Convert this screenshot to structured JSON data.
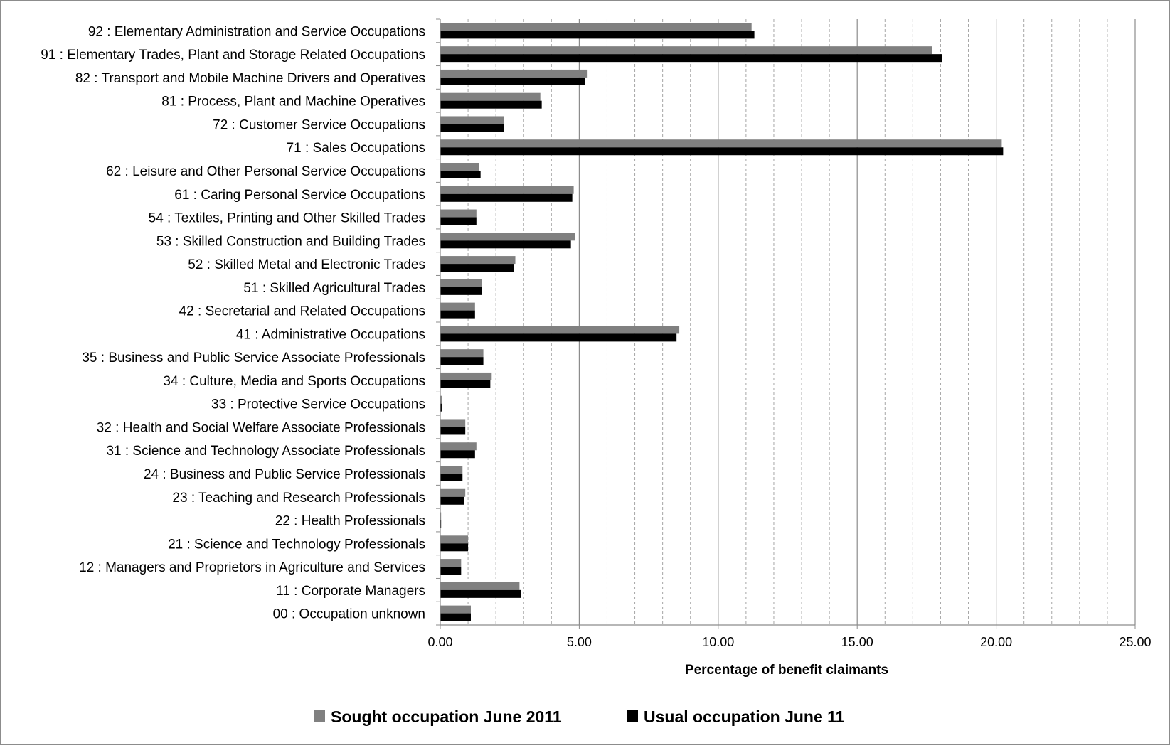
{
  "chart_data": {
    "type": "bar",
    "orientation": "horizontal",
    "title": "",
    "xlabel": "Percentage of benefit  claimants",
    "ylabel": "",
    "xlim": [
      0,
      25
    ],
    "x_ticks": [
      "0.00",
      "5.00",
      "10.00",
      "15.00",
      "20.00",
      "25.00"
    ],
    "grid": "vertical major and minor",
    "legend_position": "bottom",
    "categories": [
      "92 : Elementary Administration and Service Occupations",
      "91 : Elementary Trades, Plant and Storage Related Occupations",
      "82 : Transport and Mobile Machine Drivers and Operatives",
      "81 : Process, Plant and Machine Operatives",
      "72 : Customer Service Occupations",
      "71 : Sales Occupations",
      "62 : Leisure and Other Personal Service Occupations",
      "61 : Caring Personal Service Occupations",
      "54 : Textiles, Printing and Other Skilled Trades",
      "53 : Skilled Construction and Building Trades",
      "52 : Skilled Metal and Electronic Trades",
      "51 : Skilled Agricultural Trades",
      "42 : Secretarial and Related Occupations",
      "41 : Administrative Occupations",
      "35 : Business and Public Service Associate Professionals",
      "34 : Culture, Media and Sports Occupations",
      "33 : Protective Service Occupations",
      "32 : Health and Social Welfare Associate Professionals",
      "31 : Science and Technology Associate Professionals",
      "24 : Business and Public Service Professionals",
      "23 : Teaching and Research Professionals",
      "22 : Health Professionals",
      "21 : Science and Technology Professionals",
      "12 : Managers and Proprietors in Agriculture and Services",
      "11 : Corporate Managers",
      "00 : Occupation unknown"
    ],
    "series": [
      {
        "name": "Sought occupation June 2011",
        "color": "#808080",
        "values": [
          11.2,
          17.7,
          5.3,
          3.6,
          2.3,
          20.2,
          1.4,
          4.8,
          1.3,
          4.85,
          2.7,
          1.5,
          1.25,
          8.6,
          1.55,
          1.85,
          0.05,
          0.9,
          1.3,
          0.8,
          0.9,
          0.03,
          1.0,
          0.75,
          2.85,
          1.1
        ]
      },
      {
        "name": "Usual occupation June 11",
        "color": "#000000",
        "values": [
          11.3,
          18.05,
          5.2,
          3.65,
          2.3,
          20.25,
          1.45,
          4.75,
          1.3,
          4.7,
          2.65,
          1.5,
          1.25,
          8.5,
          1.55,
          1.8,
          0.05,
          0.9,
          1.25,
          0.8,
          0.85,
          0.03,
          1.0,
          0.75,
          2.9,
          1.1
        ]
      }
    ]
  }
}
